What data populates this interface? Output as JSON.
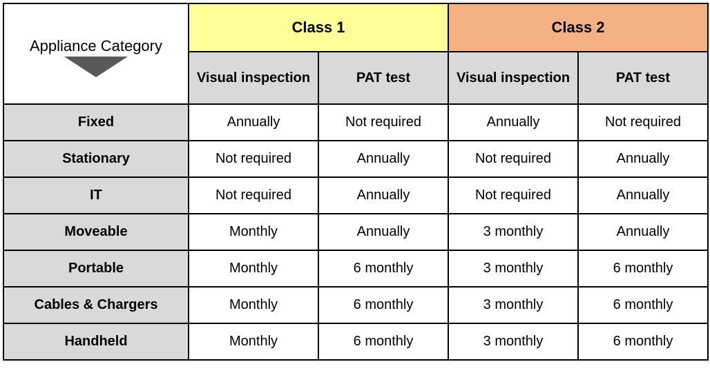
{
  "colors": {
    "class1_bg": "#feff99",
    "class2_bg": "#f4b183",
    "grey_bg": "#d9d9d9",
    "border": "#000000",
    "arrow": "#595959",
    "white": "#ffffff"
  },
  "corner_label": "Appliance Category",
  "class_headers": [
    "Class 1",
    "Class 2"
  ],
  "sub_headers": [
    "Visual inspection",
    "PAT test",
    "Visual inspection",
    "PAT test"
  ],
  "rows": [
    {
      "label": "Fixed",
      "cells": [
        "Annually",
        "Not required",
        "Annually",
        "Not required"
      ]
    },
    {
      "label": "Stationary",
      "cells": [
        "Not required",
        "Annually",
        "Not required",
        "Annually"
      ]
    },
    {
      "label": "IT",
      "cells": [
        "Not required",
        "Annually",
        "Not required",
        "Annually"
      ]
    },
    {
      "label": "Moveable",
      "cells": [
        "Monthly",
        "Annually",
        "3 monthly",
        "Annually"
      ]
    },
    {
      "label": "Portable",
      "cells": [
        "Monthly",
        "6 monthly",
        "3 monthly",
        "6 monthly"
      ]
    },
    {
      "label": "Cables & Chargers",
      "cells": [
        "Monthly",
        "6 monthly",
        "3 monthly",
        "6 monthly"
      ]
    },
    {
      "label": "Handheld",
      "cells": [
        "Monthly",
        "6 monthly",
        "3 monthly",
        "6 monthly"
      ]
    }
  ]
}
